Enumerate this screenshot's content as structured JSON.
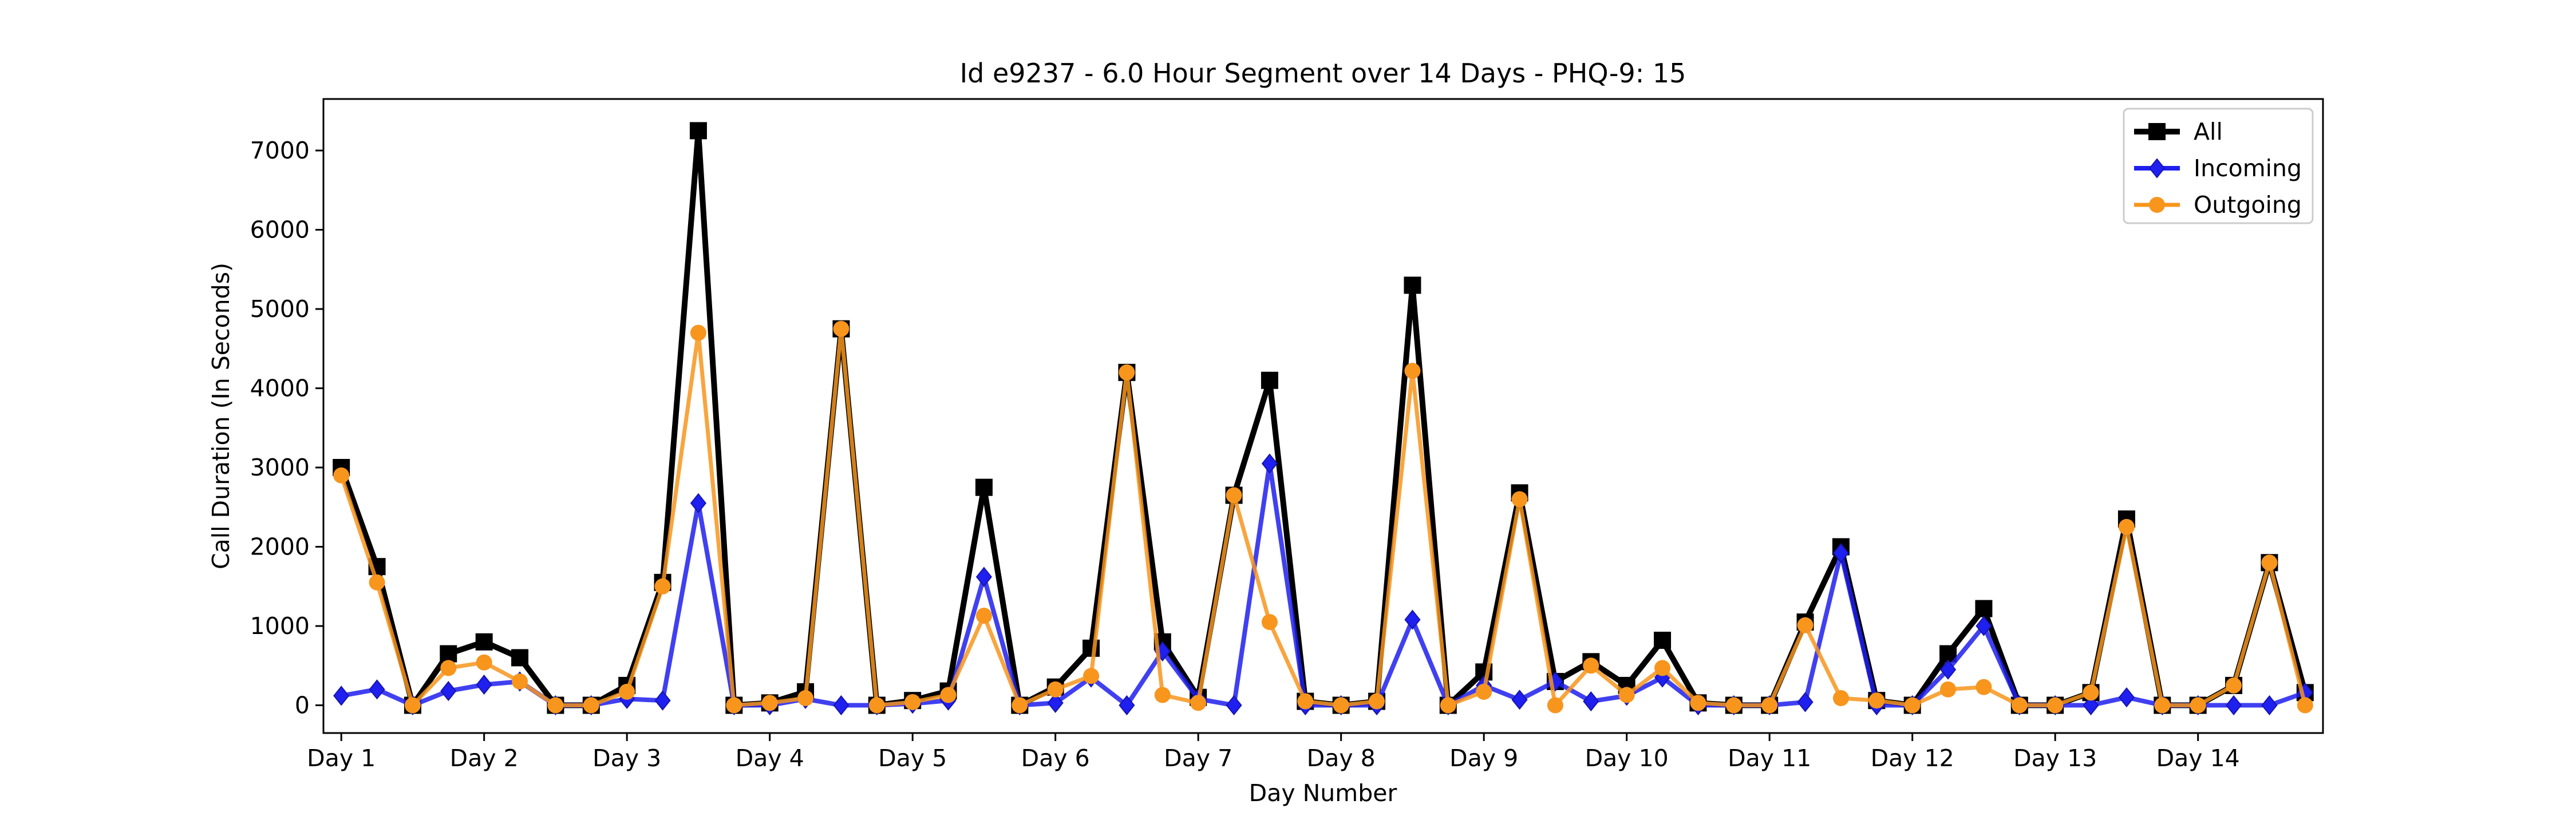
{
  "chart_data": {
    "type": "line",
    "title": "Id e9237 - 6.0 Hour Segment over 14 Days - PHQ-9: 15",
    "xlabel": "Day Number",
    "ylabel": "Call Duration (In Seconds)",
    "xlim": [
      -0.5,
      55.5
    ],
    "ylim": [
      -350,
      7650
    ],
    "yticks": [
      0,
      1000,
      2000,
      3000,
      4000,
      5000,
      6000,
      7000
    ],
    "xticks": [
      {
        "x": 0,
        "label": "Day 1"
      },
      {
        "x": 4,
        "label": "Day 2"
      },
      {
        "x": 8,
        "label": "Day 3"
      },
      {
        "x": 12,
        "label": "Day 4"
      },
      {
        "x": 16,
        "label": "Day 5"
      },
      {
        "x": 20,
        "label": "Day 6"
      },
      {
        "x": 24,
        "label": "Day 7"
      },
      {
        "x": 28,
        "label": "Day 8"
      },
      {
        "x": 32,
        "label": "Day 9"
      },
      {
        "x": 36,
        "label": "Day 10"
      },
      {
        "x": 40,
        "label": "Day 11"
      },
      {
        "x": 44,
        "label": "Day 12"
      },
      {
        "x": 48,
        "label": "Day 13"
      },
      {
        "x": 52,
        "label": "Day 14"
      }
    ],
    "grid": false,
    "legend_position": "top-right",
    "series": [
      {
        "name": "All",
        "color": "#000000",
        "marker": "square",
        "values": [
          3000,
          1750,
          0,
          650,
          800,
          600,
          0,
          0,
          250,
          1550,
          7250,
          0,
          30,
          170,
          4750,
          0,
          60,
          180,
          2750,
          0,
          230,
          720,
          4200,
          800,
          100,
          2650,
          4100,
          50,
          0,
          50,
          5300,
          0,
          420,
          2680,
          300,
          550,
          250,
          820,
          30,
          0,
          0,
          1050,
          2000,
          60,
          0,
          650,
          1220,
          0,
          0,
          160,
          2350,
          0,
          0,
          250,
          1800,
          160
        ]
      },
      {
        "name": "Incoming",
        "color": "#1f1fef",
        "marker": "diamond",
        "values": [
          120,
          200,
          0,
          180,
          260,
          300,
          0,
          0,
          80,
          60,
          2550,
          0,
          0,
          80,
          0,
          0,
          20,
          60,
          1620,
          0,
          30,
          350,
          0,
          680,
          80,
          0,
          3050,
          0,
          0,
          0,
          1080,
          0,
          250,
          70,
          300,
          50,
          120,
          350,
          0,
          0,
          0,
          40,
          1920,
          0,
          0,
          450,
          1000,
          0,
          0,
          0,
          100,
          0,
          0,
          0,
          0,
          160
        ]
      },
      {
        "name": "Outgoing",
        "color": "#f7951d",
        "marker": "circle",
        "values": [
          2900,
          1550,
          0,
          470,
          540,
          300,
          0,
          0,
          170,
          1500,
          4700,
          0,
          30,
          90,
          4750,
          0,
          40,
          130,
          1130,
          0,
          200,
          370,
          4200,
          130,
          30,
          2650,
          1050,
          50,
          0,
          50,
          4220,
          0,
          170,
          2600,
          0,
          500,
          130,
          470,
          30,
          0,
          0,
          1010,
          90,
          60,
          0,
          200,
          230,
          0,
          0,
          160,
          2250,
          0,
          0,
          250,
          1800,
          0
        ]
      }
    ]
  }
}
